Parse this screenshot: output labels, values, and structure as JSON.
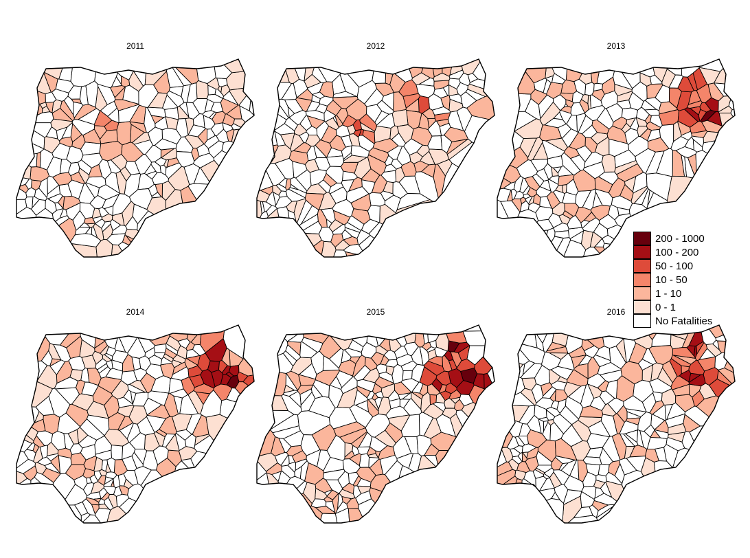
{
  "panels": [
    {
      "year": "2011",
      "hotspot": "center",
      "seed": 11,
      "intensity": 0.9
    },
    {
      "year": "2012",
      "hotspot": "center-north",
      "seed": 12,
      "intensity": 1.0
    },
    {
      "year": "2013",
      "hotspot": "northeast",
      "seed": 13,
      "intensity": 1.4
    },
    {
      "year": "2014",
      "hotspot": "northeast",
      "seed": 14,
      "intensity": 1.8
    },
    {
      "year": "2015",
      "hotspot": "northeast",
      "seed": 15,
      "intensity": 1.7
    },
    {
      "year": "2016",
      "hotspot": "northeast",
      "seed": 16,
      "intensity": 1.4
    }
  ],
  "legend": {
    "items": [
      {
        "label": "200 - 1000",
        "color": "#67000d"
      },
      {
        "label": "100 - 200",
        "color": "#a50f15"
      },
      {
        "label": "50 - 100",
        "color": "#de4b3a"
      },
      {
        "label": "10 - 50",
        "color": "#f4856a"
      },
      {
        "label": "1 - 10",
        "color": "#fbb69c"
      },
      {
        "label": "0 - 1",
        "color": "#fde0d2"
      },
      {
        "label": "No Fatalities",
        "color": "#ffffff"
      }
    ]
  }
}
